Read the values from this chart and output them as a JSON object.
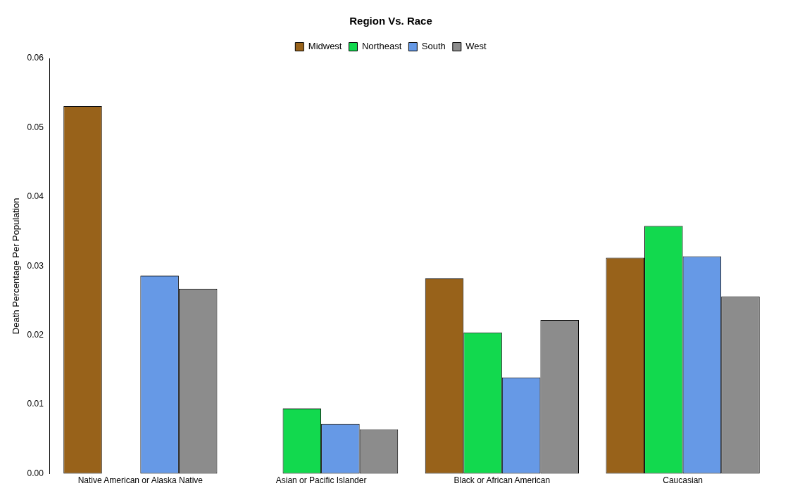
{
  "chart_data": {
    "type": "bar",
    "title": "Region Vs. Race",
    "ylabel": "Death Percentage Per Population",
    "categories": [
      "Native American or Alaska Native",
      "Asian or Pacific Islander",
      "Black or African American",
      "Caucasian"
    ],
    "series": [
      {
        "name": "Midwest",
        "color": "#98621a",
        "values": [
          0.0531,
          0,
          0.0282,
          0.0312
        ]
      },
      {
        "name": "Northeast",
        "color": "#12d94e",
        "values": [
          0,
          0.0094,
          0.0204,
          0.0358
        ]
      },
      {
        "name": "South",
        "color": "#6699e6",
        "values": [
          0.0286,
          0.0072,
          0.0139,
          0.0314
        ]
      },
      {
        "name": "West",
        "color": "#8c8c8c",
        "values": [
          0.0267,
          0.0064,
          0.0222,
          0.0256
        ]
      }
    ],
    "ylim": [
      0,
      0.06
    ],
    "yticks": [
      {
        "value": 0,
        "label": "0.00"
      },
      {
        "value": 0.01,
        "label": "0.01"
      },
      {
        "value": 0.02,
        "label": "0.02"
      },
      {
        "value": 0.03,
        "label": "0.03"
      },
      {
        "value": 0.04,
        "label": "0.04"
      },
      {
        "value": 0.05,
        "label": "0.05"
      },
      {
        "value": 0.06,
        "label": "0.06"
      }
    ],
    "grid": false,
    "legend": "top"
  }
}
